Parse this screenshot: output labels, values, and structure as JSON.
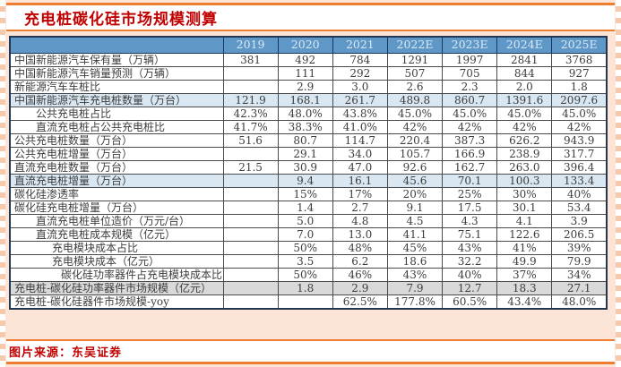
{
  "title": "充电桩碳化硅市场规模测算",
  "caption": "图片来源：东吴证券",
  "colors": {
    "accent_orange": "#ED7D31",
    "title_red": "#C00000",
    "header_blue": "#5F97C7",
    "header_text_blue": "#D9E9F7",
    "highlight_row_blue": "#D8E7F1",
    "highlight_row_gray": "#D9D9D9",
    "page_background_pink": "#FCE4D6"
  },
  "chart_data": {
    "type": "table",
    "title": "充电桩碳化硅市场规模测算",
    "columns": [
      "2019",
      "2020",
      "2021",
      "2022E",
      "2023E",
      "2024E",
      "2025E"
    ],
    "rows": [
      {
        "label": "中国新能源汽车保有量（万辆）",
        "indent": 0,
        "bg": "white",
        "values": [
          "381",
          "492",
          "784",
          "1291",
          "1997",
          "2841",
          "3768"
        ]
      },
      {
        "label": "中国新能源汽车销量预测（万辆）",
        "indent": 0,
        "bg": "white",
        "values": [
          "",
          "111",
          "292",
          "507",
          "705",
          "844",
          "927"
        ]
      },
      {
        "label": "新能源汽车车桩比",
        "indent": 0,
        "bg": "white",
        "values": [
          "",
          "2.9",
          "3.0",
          "2.6",
          "2.3",
          "2.0",
          "1.8"
        ]
      },
      {
        "label": "中国新能源汽车充电桩数量（万台）",
        "indent": 0,
        "bg": "blue",
        "values": [
          "121.9",
          "168.1",
          "261.7",
          "489.8",
          "860.7",
          "1391.6",
          "2097.6"
        ]
      },
      {
        "label": "公共充电桩占比",
        "indent": 1,
        "bg": "white",
        "values": [
          "42.3%",
          "48.0%",
          "43.8%",
          "45.0%",
          "45.0%",
          "45.0%",
          "45.0%"
        ]
      },
      {
        "label": "直流充电桩占公共充电桩比",
        "indent": 1,
        "bg": "white",
        "values": [
          "41.7%",
          "38.3%",
          "41.0%",
          "42%",
          "42%",
          "42%",
          "42%"
        ]
      },
      {
        "label": "公共充电桩数量（万台）",
        "indent": 0,
        "bg": "white",
        "values": [
          "51.6",
          "80.7",
          "114.7",
          "220.4",
          "387.3",
          "626.2",
          "943.9"
        ]
      },
      {
        "label": "公共充电桩增量（万台）",
        "indent": 0,
        "bg": "white",
        "values": [
          "",
          "29.1",
          "34.0",
          "105.7",
          "166.9",
          "238.9",
          "317.7"
        ]
      },
      {
        "label": "直流充电桩数量（万台）",
        "indent": 0,
        "bg": "white",
        "values": [
          "21.5",
          "30.9",
          "47.0",
          "92.6",
          "162.7",
          "263.0",
          "396.4"
        ]
      },
      {
        "label": "直流充电桩增量（万台）",
        "indent": 0,
        "bg": "blue",
        "values": [
          "",
          "9.4",
          "16.1",
          "45.6",
          "70.1",
          "100.3",
          "133.4"
        ]
      },
      {
        "label": "碳化硅渗透率",
        "indent": 0,
        "bg": "white",
        "values": [
          "",
          "15%",
          "17%",
          "20%",
          "25%",
          "30%",
          "40%"
        ]
      },
      {
        "label": "碳化硅充电桩增量（万台）",
        "indent": 0,
        "bg": "white",
        "values": [
          "",
          "1.4",
          "2.7",
          "9.1",
          "17.5",
          "30.1",
          "53.4"
        ]
      },
      {
        "label": "直流充电桩单位造价（万元/台）",
        "indent": 1,
        "bg": "white",
        "values": [
          "",
          "5.0",
          "4.8",
          "4.5",
          "4.3",
          "4.1",
          "3.9"
        ]
      },
      {
        "label": "直流充电桩成本规模（亿元）",
        "indent": 1,
        "bg": "white",
        "values": [
          "",
          "7.0",
          "13.0",
          "41.1",
          "75.1",
          "122.6",
          "206.5"
        ]
      },
      {
        "label": "充电模块成本占比",
        "indent": 2,
        "bg": "white",
        "values": [
          "",
          "50%",
          "48%",
          "45%",
          "43%",
          "41%",
          "39%"
        ]
      },
      {
        "label": "充电模块成本（亿元）",
        "indent": 2,
        "bg": "white",
        "values": [
          "",
          "3.5",
          "6.2",
          "18.6",
          "32.2",
          "49.9",
          "79.9"
        ]
      },
      {
        "label": "碳化硅功率器件占充电模块成本比",
        "indent": 3,
        "bg": "white",
        "values": [
          "",
          "50%",
          "46%",
          "43%",
          "40%",
          "37%",
          "34%"
        ]
      },
      {
        "label": "充电桩-碳化硅功率器件市场规模（亿元）",
        "indent": 0,
        "bg": "gray",
        "values": [
          "",
          "1.8",
          "2.9",
          "7.9",
          "12.7",
          "18.3",
          "27.1"
        ]
      },
      {
        "label": "充电桩-碳化硅器件市场规模-yoy",
        "indent": 0,
        "bg": "white",
        "values": [
          "",
          "",
          "62.5%",
          "177.8%",
          "60.5%",
          "43.4%",
          "48.0%"
        ]
      }
    ]
  }
}
